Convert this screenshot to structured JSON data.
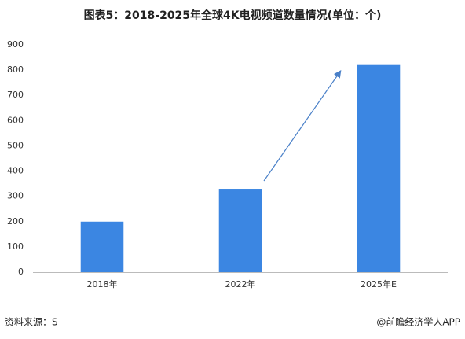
{
  "chart_data": {
    "type": "bar",
    "title": "图表5：2018-2025年全球4K电视频道数量情况(单位：个)",
    "categories": [
      "2018年",
      "2022年",
      "2025年E"
    ],
    "values": [
      200,
      330,
      820
    ],
    "color": "#3b86e2",
    "ylim": [
      0,
      900
    ],
    "yticks": [
      0,
      100,
      200,
      300,
      400,
      500,
      600,
      700,
      800,
      900
    ],
    "grid": false
  },
  "footer": {
    "source": "资料来源：S",
    "brand": "@前瞻经济学人APP"
  }
}
